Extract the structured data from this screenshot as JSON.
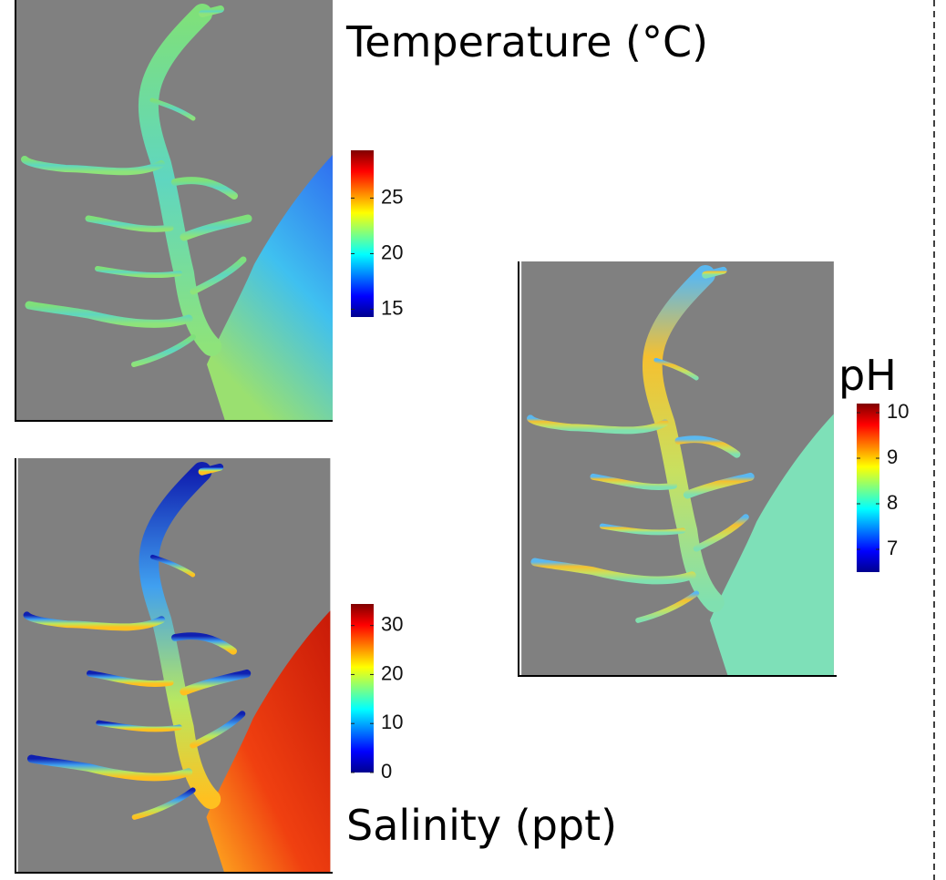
{
  "panels": [
    {
      "title": "Temperature (°C)",
      "colorbar": {
        "lim": [
          14.3,
          29.3
        ],
        "ticks": [
          15,
          20,
          25
        ]
      }
    },
    {
      "title": "Salinity (ppt)",
      "colorbar": {
        "lim": [
          0,
          34.4
        ],
        "ticks": [
          0,
          10,
          20,
          30
        ]
      }
    },
    {
      "title": "pH",
      "colorbar": {
        "lim": [
          6.5,
          10.2
        ],
        "ticks": [
          7,
          8,
          9,
          10
        ]
      }
    }
  ]
}
